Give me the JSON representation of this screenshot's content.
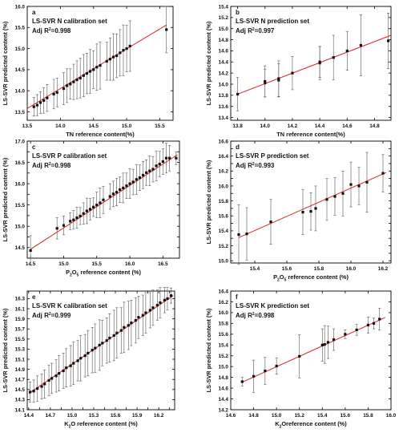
{
  "chart_data": [
    {
      "type": "scatter",
      "panel_label": "a",
      "title": "LS-SVR N calibration set",
      "adj_label": "Adj R",
      "adj_value": "=0.998",
      "xlabel": "TN reference content(%)",
      "ylabel": "LS-SVR predicted content (%)",
      "xlim": [
        13.5,
        15.7
      ],
      "ylim": [
        13.3,
        16.0
      ],
      "xticks": [
        13.5,
        14.0,
        14.5,
        15.0,
        15.5
      ],
      "xtick_labels": [
        "13.5",
        "14.0",
        "14.5",
        "15.0",
        "15.5"
      ],
      "yticks": [
        13.5,
        14.0,
        14.5,
        15.0,
        15.5,
        16.0
      ],
      "ytick_labels": [
        "13.5",
        "14.0",
        "14.5",
        "15.0",
        "15.5",
        "16.0"
      ],
      "fit_line": [
        [
          13.5,
          13.58
        ],
        [
          15.6,
          15.56
        ]
      ],
      "points": [
        [
          13.6,
          13.62,
          0.22
        ],
        [
          13.65,
          13.66,
          0.25
        ],
        [
          13.7,
          13.72,
          0.26
        ],
        [
          13.75,
          13.77,
          0.3
        ],
        [
          13.8,
          13.83,
          0.32
        ],
        [
          13.9,
          13.92,
          0.35
        ],
        [
          13.95,
          13.96,
          0.34
        ],
        [
          14.05,
          14.05,
          0.38
        ],
        [
          14.1,
          14.12,
          0.4
        ],
        [
          14.15,
          14.16,
          0.36
        ],
        [
          14.2,
          14.21,
          0.42
        ],
        [
          14.25,
          14.26,
          0.45
        ],
        [
          14.3,
          14.3,
          0.47
        ],
        [
          14.35,
          14.36,
          0.5
        ],
        [
          14.4,
          14.41,
          0.48
        ],
        [
          14.45,
          14.46,
          0.52
        ],
        [
          14.5,
          14.5,
          0.45
        ],
        [
          14.55,
          14.56,
          0.55
        ],
        [
          14.6,
          14.6,
          0.56
        ],
        [
          14.7,
          14.7,
          0.45
        ],
        [
          14.75,
          14.75,
          0.5
        ],
        [
          14.8,
          14.8,
          0.55
        ],
        [
          14.85,
          14.83,
          0.52
        ],
        [
          14.9,
          14.9,
          0.55
        ],
        [
          14.95,
          14.96,
          0.6
        ],
        [
          15.0,
          15.0,
          0.55
        ],
        [
          15.05,
          15.06,
          0.6
        ],
        [
          15.6,
          15.45,
          0.55
        ]
      ]
    },
    {
      "type": "scatter",
      "panel_label": "b",
      "title": "LS-SVR N prediction set",
      "adj_label": "Adj R",
      "adj_value": "=0.997",
      "xlabel": "TN reference content(%)",
      "ylabel": "LS-SVR predicted content (%)",
      "xlim": [
        13.75,
        14.92
      ],
      "ylim": [
        13.35,
        15.4
      ],
      "xticks": [
        13.8,
        14.0,
        14.2,
        14.4,
        14.6,
        14.8
      ],
      "xtick_labels": [
        "13.8",
        "14.0",
        "14.2",
        "14.4",
        "14.6",
        "14.8"
      ],
      "yticks": [
        13.4,
        13.6,
        13.8,
        14.0,
        14.2,
        14.4,
        14.6,
        14.8,
        15.0,
        15.2,
        15.4
      ],
      "ytick_labels": [
        "13.4",
        "13.6",
        "13.8",
        "14.0",
        "14.2",
        "14.4",
        "14.6",
        "14.8",
        "15.0",
        "15.2",
        "15.4"
      ],
      "fit_line": [
        [
          13.8,
          13.82
        ],
        [
          14.92,
          14.88
        ]
      ],
      "points": [
        [
          13.8,
          13.82,
          0.3
        ],
        [
          14.0,
          14.02,
          0.25
        ],
        [
          14.0,
          14.05,
          0.28
        ],
        [
          14.1,
          14.07,
          0.3
        ],
        [
          14.1,
          14.1,
          0.32
        ],
        [
          14.2,
          14.2,
          0.3
        ],
        [
          14.4,
          14.38,
          0.3
        ],
        [
          14.4,
          14.4,
          0.28
        ],
        [
          14.5,
          14.48,
          0.4
        ],
        [
          14.6,
          14.6,
          0.35
        ],
        [
          14.7,
          14.7,
          0.55
        ],
        [
          14.9,
          14.78,
          0.5
        ]
      ]
    },
    {
      "type": "scatter",
      "panel_label": "c",
      "title": "LS-SVR P calibration set",
      "adj_label": "Adj R",
      "adj_value": "=0.998",
      "xlabel_main": "P",
      "xlabel_sub1": "2",
      "xlabel_mid": "O",
      "xlabel_sub2": "5",
      "xlabel_rest": " reference content (%)",
      "ylabel": "LS-SVR predicted content (%)",
      "xlim": [
        14.45,
        16.75
      ],
      "ylim": [
        14.25,
        17.0
      ],
      "xticks": [
        14.5,
        15.0,
        15.5,
        16.0,
        16.5
      ],
      "xtick_labels": [
        "14.5",
        "15.0",
        "15.5",
        "16.0",
        "16.5"
      ],
      "yticks": [
        14.5,
        14.75,
        15.0,
        15.25,
        15.5,
        15.75,
        16.0,
        16.25,
        16.5,
        16.75,
        17.0
      ],
      "ytick_labels": [
        "14.5",
        "",
        "15.0",
        "",
        "15.5",
        "",
        "16.0",
        "",
        "16.5",
        "",
        "17.0"
      ],
      "fit_line": [
        [
          14.5,
          14.46
        ],
        [
          16.72,
          16.68
        ]
      ],
      "points": [
        [
          14.5,
          14.43,
          0.35
        ],
        [
          14.9,
          14.95,
          0.25
        ],
        [
          15.0,
          15.02,
          0.22
        ],
        [
          15.1,
          15.12,
          0.2
        ],
        [
          15.15,
          15.15,
          0.22
        ],
        [
          15.2,
          15.2,
          0.25
        ],
        [
          15.25,
          15.24,
          0.2
        ],
        [
          15.3,
          15.3,
          0.25
        ],
        [
          15.35,
          15.36,
          0.3
        ],
        [
          15.4,
          15.4,
          0.25
        ],
        [
          15.45,
          15.45,
          0.22
        ],
        [
          15.5,
          15.5,
          0.3
        ],
        [
          15.55,
          15.55,
          0.35
        ],
        [
          15.6,
          15.62,
          0.32
        ],
        [
          15.7,
          15.7,
          0.3
        ],
        [
          15.75,
          15.76,
          0.3
        ],
        [
          15.8,
          15.8,
          0.32
        ],
        [
          15.85,
          15.86,
          0.3
        ],
        [
          15.9,
          15.9,
          0.35
        ],
        [
          15.95,
          15.95,
          0.3
        ],
        [
          16.0,
          16.0,
          0.35
        ],
        [
          16.05,
          16.04,
          0.3
        ],
        [
          16.1,
          16.1,
          0.35
        ],
        [
          16.15,
          16.14,
          0.3
        ],
        [
          16.2,
          16.2,
          0.32
        ],
        [
          16.25,
          16.26,
          0.3
        ],
        [
          16.3,
          16.3,
          0.35
        ],
        [
          16.35,
          16.34,
          0.3
        ],
        [
          16.4,
          16.42,
          0.35
        ],
        [
          16.45,
          16.46,
          0.3
        ],
        [
          16.5,
          16.52,
          0.3
        ],
        [
          16.55,
          16.6,
          0.35
        ],
        [
          16.6,
          16.6,
          0.3
        ],
        [
          16.7,
          16.6,
          0.15
        ]
      ]
    },
    {
      "type": "scatter",
      "panel_label": "d",
      "title": "LS-SVR P prediction set",
      "adj_label": "Adj R",
      "adj_value": "=0.993",
      "xlabel_main": "P",
      "xlabel_sub1": "2",
      "xlabel_mid": "O",
      "xlabel_sub2": "5",
      "xlabel_rest": " reference content (%)",
      "ylabel": "LS-SVR predicted content (%)",
      "xlim": [
        15.25,
        16.25
      ],
      "ylim": [
        14.97,
        16.6
      ],
      "xticks": [
        15.4,
        15.6,
        15.8,
        16.0,
        16.2
      ],
      "xtick_labels": [
        "15.4",
        "15.6",
        "15.8",
        "16.0",
        "16.2"
      ],
      "yticks": [
        15.0,
        15.1,
        15.2,
        15.3,
        15.4,
        15.5,
        15.6,
        15.7,
        15.8,
        15.9,
        16.0,
        16.1,
        16.2,
        16.3,
        16.4,
        16.5,
        16.6
      ],
      "ytick_labels": [
        "15.0",
        "",
        "15.2",
        "",
        "15.4",
        "",
        "15.6",
        "",
        "15.8",
        "",
        "16.0",
        "",
        "16.2",
        "",
        "16.4",
        "",
        "16.6"
      ],
      "fit_line": [
        [
          15.3,
          15.31
        ],
        [
          16.22,
          16.18
        ]
      ],
      "points": [
        [
          15.3,
          15.35,
          0.4
        ],
        [
          15.35,
          15.36,
          0.35
        ],
        [
          15.5,
          15.52,
          0.3
        ],
        [
          15.7,
          15.65,
          0.3
        ],
        [
          15.75,
          15.66,
          0.25
        ],
        [
          15.78,
          15.7,
          0.3
        ],
        [
          15.85,
          15.82,
          0.28
        ],
        [
          15.9,
          15.86,
          0.25
        ],
        [
          15.95,
          15.9,
          0.3
        ],
        [
          16.0,
          16.02,
          0.3
        ],
        [
          16.05,
          16.0,
          0.25
        ],
        [
          16.1,
          16.05,
          0.4
        ],
        [
          16.2,
          16.17,
          0.25
        ]
      ]
    },
    {
      "type": "scatter",
      "panel_label": "e",
      "title": "LS-SVR K calibration set",
      "adj_label": "Adj R",
      "adj_value": "=0.999",
      "xlabel_main": "K",
      "xlabel_sub1": "2",
      "xlabel_mid": "O",
      "xlabel_sub2": "",
      "xlabel_rest": " reference content (%)",
      "ylabel": "LS-SVR predicted content (%)",
      "xlim": [
        14.38,
        16.42
      ],
      "ylim": [
        14.1,
        16.45
      ],
      "xticks": [
        14.4,
        14.55,
        14.7,
        14.85,
        15.0,
        15.15,
        15.3,
        15.45,
        15.6,
        15.75,
        15.9,
        16.05,
        16.2,
        16.35
      ],
      "xtick_labels": [
        "14.4",
        "",
        "14.7",
        "",
        "15.0",
        "",
        "15.3",
        "",
        "15.6",
        "",
        "15.9",
        "",
        "16.2",
        ""
      ],
      "yticks": [
        14.1,
        14.3,
        14.5,
        14.7,
        14.9,
        15.1,
        15.3,
        15.5,
        15.7,
        15.9,
        16.1,
        16.3
      ],
      "ytick_labels": [
        "14.1",
        "14.3",
        "14.5",
        "14.7",
        "14.9",
        "15.1",
        "15.3",
        "15.5",
        "15.7",
        "15.9",
        "16.1",
        "16.3"
      ],
      "fit_line": [
        [
          14.4,
          14.42
        ],
        [
          16.4,
          16.36
        ]
      ],
      "points": [
        [
          14.42,
          14.45,
          0.2
        ],
        [
          14.47,
          14.47,
          0.22
        ],
        [
          14.52,
          14.52,
          0.25
        ],
        [
          14.58,
          14.56,
          0.25
        ],
        [
          14.62,
          14.61,
          0.28
        ],
        [
          14.68,
          14.68,
          0.3
        ],
        [
          14.72,
          14.72,
          0.3
        ],
        [
          14.78,
          14.77,
          0.32
        ],
        [
          14.82,
          14.82,
          0.35
        ],
        [
          14.88,
          14.87,
          0.35
        ],
        [
          14.92,
          14.93,
          0.38
        ],
        [
          14.98,
          14.97,
          0.4
        ],
        [
          15.02,
          15.02,
          0.42
        ],
        [
          15.08,
          15.07,
          0.4
        ],
        [
          15.12,
          15.12,
          0.45
        ],
        [
          15.18,
          15.17,
          0.42
        ],
        [
          15.22,
          15.22,
          0.45
        ],
        [
          15.28,
          15.28,
          0.45
        ],
        [
          15.32,
          15.32,
          0.48
        ],
        [
          15.38,
          15.38,
          0.5
        ],
        [
          15.42,
          15.42,
          0.45
        ],
        [
          15.48,
          15.47,
          0.45
        ],
        [
          15.52,
          15.52,
          0.48
        ],
        [
          15.58,
          15.57,
          0.5
        ],
        [
          15.62,
          15.62,
          0.5
        ],
        [
          15.68,
          15.67,
          0.45
        ],
        [
          15.72,
          15.73,
          0.5
        ],
        [
          15.78,
          15.77,
          0.48
        ],
        [
          15.82,
          15.82,
          0.45
        ],
        [
          15.88,
          15.87,
          0.45
        ],
        [
          15.92,
          15.93,
          0.42
        ],
        [
          15.98,
          15.97,
          0.4
        ],
        [
          16.02,
          16.02,
          0.4
        ],
        [
          16.08,
          16.07,
          0.35
        ],
        [
          16.12,
          16.12,
          0.35
        ],
        [
          16.18,
          16.17,
          0.3
        ],
        [
          16.22,
          16.22,
          0.3
        ],
        [
          16.28,
          16.27,
          0.25
        ],
        [
          16.32,
          16.3,
          0.22
        ],
        [
          16.37,
          16.36,
          0.15
        ]
      ]
    },
    {
      "type": "scatter",
      "panel_label": "f",
      "title": "LS-SVR K prediction set",
      "adj_label": "Adj R",
      "adj_value": "=0.998",
      "xlabel_main": "K",
      "xlabel_sub1": "2",
      "xlabel_mid": "O",
      "xlabel_sub2": "",
      "xlabel_rest": "reference content (%)",
      "ylabel": "LS-SVR predicted content (%)",
      "xlim": [
        14.6,
        16.0
      ],
      "ylim": [
        14.2,
        16.4
      ],
      "xticks": [
        14.6,
        14.8,
        15.0,
        15.2,
        15.4,
        15.6,
        15.8,
        16.0
      ],
      "xtick_labels": [
        "14.6",
        "14.8",
        "15.0",
        "15.2",
        "15.4",
        "15.6",
        "15.8",
        "16.0"
      ],
      "yticks": [
        14.2,
        14.4,
        14.6,
        14.8,
        15.0,
        15.2,
        15.4,
        15.6,
        15.8,
        16.0,
        16.2,
        16.4
      ],
      "ytick_labels": [
        "14.2",
        "14.4",
        "14.6",
        "14.8",
        "15.0",
        "15.2",
        "15.4",
        "15.6",
        "15.8",
        "16.0",
        "16.2",
        "16.4"
      ],
      "fit_line": [
        [
          14.7,
          14.71
        ],
        [
          15.95,
          15.91
        ]
      ],
      "points": [
        [
          14.7,
          14.72,
          0.08
        ],
        [
          14.8,
          14.82,
          0.3
        ],
        [
          14.9,
          14.92,
          0.25
        ],
        [
          15.0,
          15.01,
          0.15
        ],
        [
          15.2,
          15.19,
          0.4
        ],
        [
          15.4,
          15.4,
          0.3
        ],
        [
          15.42,
          15.41,
          0.35
        ],
        [
          15.45,
          15.45,
          0.3
        ],
        [
          15.5,
          15.5,
          0.2
        ],
        [
          15.6,
          15.6,
          0.08
        ],
        [
          15.7,
          15.68,
          0.1
        ],
        [
          15.8,
          15.77,
          0.15
        ],
        [
          15.85,
          15.8,
          0.1
        ],
        [
          15.9,
          15.88,
          0.2
        ]
      ]
    }
  ]
}
